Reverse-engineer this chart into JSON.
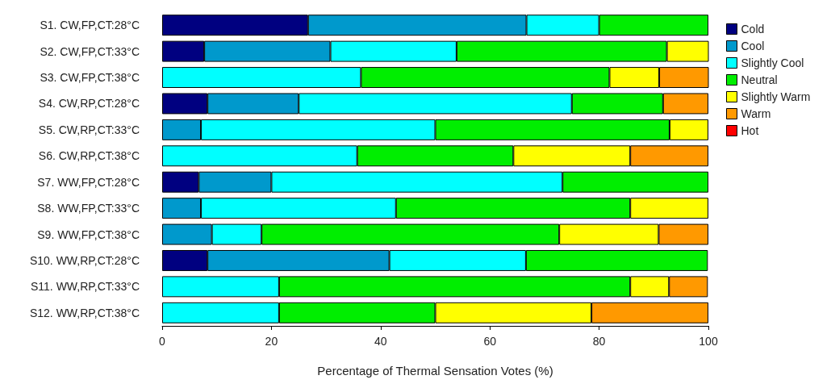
{
  "chart_data": {
    "type": "bar",
    "orientation": "horizontal",
    "stacked": true,
    "xlabel": "Percentage of Thermal Sensation Votes (%)",
    "categories": [
      "S1. CW,FP,CT:28°C",
      "S2. CW,FP,CT:33°C",
      "S3. CW,FP,CT:38°C",
      "S4. CW,RP,CT:28°C",
      "S5. CW,RP,CT:33°C",
      "S6. CW,RP,CT:38°C",
      "S7. WW,FP,CT:28°C",
      "S8. WW,FP,CT:33°C",
      "S9. WW,FP,CT:38°C",
      "S10. WW,RP,CT:28°C",
      "S11. WW,RP,CT:33°C",
      "S12. WW,RP,CT:38°C"
    ],
    "series": [
      {
        "name": "Cold",
        "color": "#000080",
        "values": [
          26.7,
          7.7,
          null,
          8.3,
          null,
          null,
          6.7,
          null,
          null,
          8.3,
          null,
          null
        ]
      },
      {
        "name": "Cool",
        "color": "#0099cc",
        "values": [
          40,
          23.1,
          null,
          16.7,
          7.1,
          null,
          13.3,
          7.1,
          9.1,
          33.3,
          null,
          null
        ]
      },
      {
        "name": "Slightly Cool",
        "color": "#00ffff",
        "values": [
          13.3,
          23.1,
          36.4,
          50,
          42.9,
          35.7,
          53.3,
          35.7,
          9.1,
          25,
          21.4,
          21.4
        ]
      },
      {
        "name": "Neutral",
        "color": "#00ee00",
        "values": [
          20,
          38.5,
          45.5,
          16.7,
          42.9,
          28.6,
          26.7,
          42.9,
          54.5,
          33.3,
          64.3,
          28.6
        ]
      },
      {
        "name": "Slightly Warm",
        "color": "#ffff00",
        "values": [
          null,
          7.7,
          9.1,
          null,
          7.1,
          21.4,
          null,
          14.3,
          18.2,
          null,
          7.1,
          28.6
        ]
      },
      {
        "name": "Warm",
        "color": "#ff9900",
        "values": [
          null,
          null,
          9.1,
          8.3,
          null,
          14.3,
          null,
          null,
          9.1,
          null,
          7.1,
          21.4
        ]
      },
      {
        "name": "Hot",
        "color": "#ff0000",
        "values": [
          null,
          null,
          null,
          null,
          null,
          null,
          null,
          null,
          null,
          null,
          null,
          null
        ]
      }
    ],
    "xlim": [
      0,
      100
    ],
    "xticks": [
      0,
      20,
      40,
      60,
      80,
      100
    ],
    "grid": false,
    "legend": "top right"
  }
}
